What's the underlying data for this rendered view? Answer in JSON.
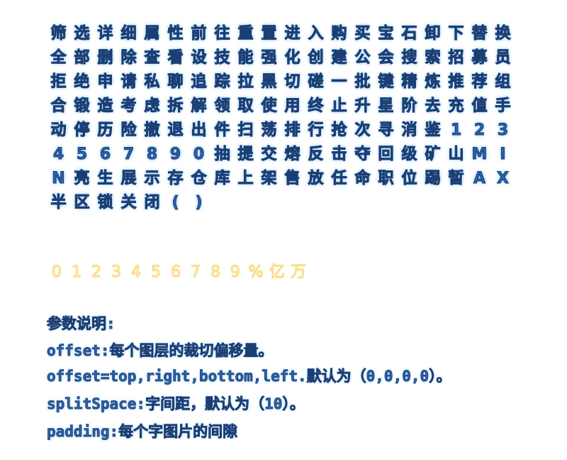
{
  "glyph_sheet": {
    "glyphs": [
      "筛",
      "选",
      "详",
      "细",
      "属",
      "性",
      "前",
      "往",
      "重",
      "置",
      "进",
      "入",
      "购",
      "买",
      "宝",
      "石",
      "卸",
      "下",
      "替",
      "换",
      "全",
      "部",
      "删",
      "除",
      "查",
      "看",
      "设",
      "技",
      "能",
      "强",
      "化",
      "创",
      "建",
      "公",
      "会",
      "搜",
      "索",
      "招",
      "募",
      "员",
      "拒",
      "绝",
      "申",
      "请",
      "私",
      "聊",
      "追",
      "踪",
      "拉",
      "黑",
      "切",
      "磋",
      "一",
      "批",
      "键",
      "精",
      "炼",
      "推",
      "荐",
      "组",
      "合",
      "锻",
      "造",
      "考",
      "虑",
      "拆",
      "解",
      "领",
      "取",
      "使",
      "用",
      "终",
      "止",
      "升",
      "星",
      "阶",
      "去",
      "充",
      "值",
      "手",
      "动",
      "停",
      "历",
      "险",
      "撤",
      "退",
      "出",
      "件",
      "扫",
      "荡",
      "排",
      "行",
      "抢",
      "次",
      "寻",
      "消",
      "鉴",
      "1",
      "2",
      "3",
      "4",
      "5",
      "6",
      "7",
      "8",
      "9",
      "0",
      "抽",
      "提",
      "交",
      "熔",
      "反",
      "击",
      "夺",
      "回",
      "级",
      "矿",
      "山",
      "M",
      "I",
      "N",
      "亮",
      "生",
      "展",
      "示",
      "存",
      "仓",
      "库",
      "上",
      "架",
      "售",
      "放",
      "任",
      "命",
      "职",
      "位",
      "踢",
      "暂",
      "A",
      "X",
      "半",
      "区",
      "锁",
      "关",
      "闭",
      "(",
      ")"
    ],
    "style_colors": {
      "fill": "#2a62a8",
      "stroke": "#1a3f74",
      "glow": "#8fc8ff"
    }
  },
  "number_sheet": {
    "glyphs": [
      "0",
      "1",
      "2",
      "3",
      "4",
      "5",
      "6",
      "7",
      "8",
      "9",
      "%",
      "亿",
      "万"
    ],
    "style_colors": {
      "fill": "#fff8d8",
      "stroke": "#f3d36e"
    }
  },
  "description": {
    "lines": [
      "参数说明:",
      "offset:每个图层的裁切偏移量。",
      "offset=top,right,bottom,left.默认为（0,0,0,0）。",
      "splitSpace:字间距，默认为（10）。",
      "padding:每个字图片的间隙"
    ]
  }
}
